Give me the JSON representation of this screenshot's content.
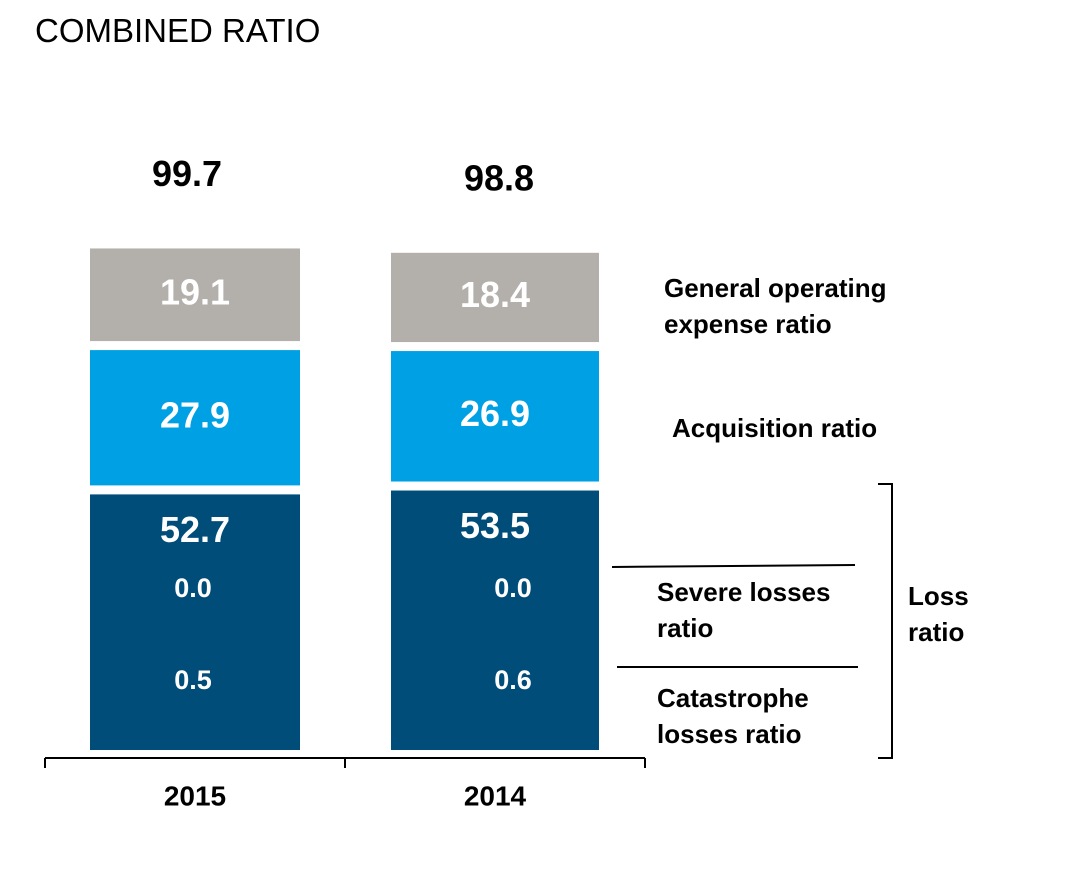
{
  "chart_data": {
    "type": "stacked-bar",
    "title": "COMBINED RATIO",
    "categories": [
      "2015",
      "2014"
    ],
    "series": [
      {
        "name": "Loss ratio",
        "color": "#004d7a",
        "values": [
          52.7,
          53.5
        ]
      },
      {
        "name": "Acquisition ratio",
        "color": "#00a1e4",
        "values": [
          27.9,
          26.9
        ]
      },
      {
        "name": "General operating expense ratio",
        "color": "#b3afab",
        "values": [
          19.1,
          18.4
        ]
      }
    ],
    "totals": [
      99.7,
      98.8
    ],
    "sub_components": [
      {
        "name": "Severe losses ratio",
        "values": [
          0.0,
          0.0
        ],
        "value_labels": [
          "0.0",
          "0.0"
        ]
      },
      {
        "name": "Catastrophe losses ratio",
        "values": [
          0.5,
          0.6
        ]
      }
    ]
  }
}
